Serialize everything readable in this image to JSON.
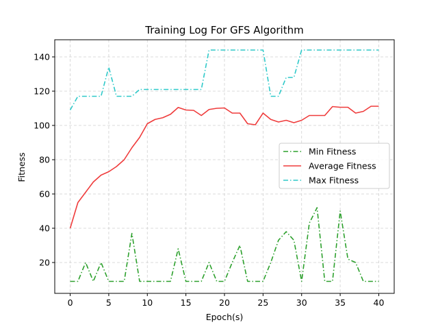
{
  "chart_data": {
    "type": "line",
    "title": "Training Log For GFS Algorithm",
    "xlabel": "Epoch(s)",
    "ylabel": "Fitness",
    "xlim": [
      -2,
      42
    ],
    "ylim": [
      2,
      150
    ],
    "xticks": [
      0,
      5,
      10,
      15,
      20,
      25,
      30,
      35,
      40
    ],
    "yticks": [
      20,
      40,
      60,
      80,
      100,
      120,
      140
    ],
    "grid": true,
    "legend_position": "center-right",
    "x": [
      0,
      1,
      2,
      3,
      4,
      5,
      6,
      7,
      8,
      9,
      10,
      11,
      12,
      13,
      14,
      15,
      16,
      17,
      18,
      19,
      20,
      21,
      22,
      23,
      24,
      25,
      26,
      27,
      28,
      29,
      30,
      31,
      32,
      33,
      34,
      35,
      36,
      37,
      38,
      39,
      40
    ],
    "series": [
      {
        "name": "Min Fitness",
        "color": "#2ca02c",
        "style": "dashdot",
        "values": [
          9,
          9,
          20,
          9,
          20,
          9,
          9,
          9,
          37,
          9,
          9,
          9,
          9,
          9,
          28,
          9,
          9,
          9,
          20,
          9,
          9,
          20,
          30,
          9,
          9,
          9,
          20,
          33,
          38,
          33,
          9,
          43,
          52,
          9,
          9,
          50,
          22,
          20,
          9,
          9,
          9
        ]
      },
      {
        "name": "Average Fitness",
        "color": "#ef3b3b",
        "style": "solid",
        "values": [
          40,
          55,
          61,
          67,
          71,
          73,
          76,
          80,
          87,
          93,
          101,
          103.5,
          104.5,
          106.5,
          110.5,
          109,
          108.8,
          105.8,
          109.3,
          110,
          110.2,
          107.2,
          107.2,
          101,
          100.4,
          107.2,
          103.5,
          102,
          103,
          101.6,
          103,
          105.8,
          105.8,
          105.8,
          111,
          110.6,
          110.6,
          107.2,
          108.2,
          111.2,
          111.2
        ]
      },
      {
        "name": "Max Fitness",
        "color": "#2ec9c9",
        "style": "dashdot",
        "values": [
          109,
          117,
          117,
          117,
          117,
          134,
          117,
          117,
          117,
          121,
          121,
          121,
          121,
          121,
          121,
          121,
          121,
          121,
          144,
          144,
          144,
          144,
          144,
          144,
          144,
          144,
          117,
          117,
          128,
          128,
          144,
          144,
          144,
          144,
          144,
          144,
          144,
          144,
          144,
          144,
          144
        ]
      }
    ]
  }
}
